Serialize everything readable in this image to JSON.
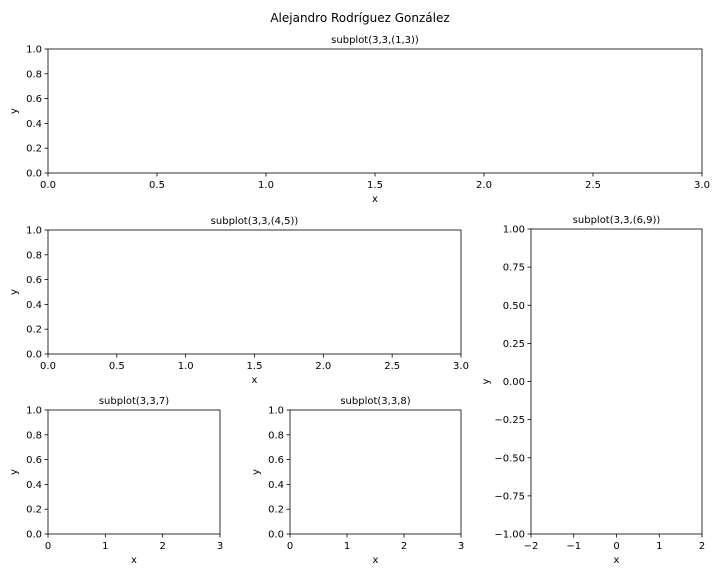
{
  "figure": {
    "suptitle": "Alejandro Rodríguez González"
  },
  "chart_data": [
    {
      "type": "line",
      "title": "subplot(3,3,(1,3))",
      "xlabel": "x",
      "ylabel": "y",
      "xlim": [
        0,
        3
      ],
      "ylim": [
        0,
        1
      ],
      "xticks": [
        "0.0",
        "0.5",
        "1.0",
        "1.5",
        "2.0",
        "2.5",
        "3.0"
      ],
      "yticks": [
        "0.0",
        "0.2",
        "0.4",
        "0.6",
        "0.8",
        "1.0"
      ],
      "series": []
    },
    {
      "type": "line",
      "title": "subplot(3,3,(4,5))",
      "xlabel": "x",
      "ylabel": "y",
      "xlim": [
        0,
        3
      ],
      "ylim": [
        0,
        1
      ],
      "xticks": [
        "0.0",
        "0.5",
        "1.0",
        "1.5",
        "2.0",
        "2.5",
        "3.0"
      ],
      "yticks": [
        "0.0",
        "0.2",
        "0.4",
        "0.6",
        "0.8",
        "1.0"
      ],
      "series": []
    },
    {
      "type": "line",
      "title": "subplot(3,3,(6,9))",
      "xlabel": "x",
      "ylabel": "y",
      "xlim": [
        -2,
        2
      ],
      "ylim": [
        -1,
        1
      ],
      "xticks": [
        "−2",
        "−1",
        "0",
        "1",
        "2"
      ],
      "yticks": [
        "−1.00",
        "−0.75",
        "−0.50",
        "−0.25",
        "0.00",
        "0.25",
        "0.50",
        "0.75",
        "1.00"
      ],
      "series": []
    },
    {
      "type": "line",
      "title": "subplot(3,3,7)",
      "xlabel": "x",
      "ylabel": "y",
      "xlim": [
        0,
        3
      ],
      "ylim": [
        0,
        1
      ],
      "xticks": [
        "0",
        "1",
        "2",
        "3"
      ],
      "yticks": [
        "0.0",
        "0.2",
        "0.4",
        "0.6",
        "0.8",
        "1.0"
      ],
      "series": []
    },
    {
      "type": "line",
      "title": "subplot(3,3,8)",
      "xlabel": "x",
      "ylabel": "y",
      "xlim": [
        0,
        3
      ],
      "ylim": [
        0,
        1
      ],
      "xticks": [
        "0",
        "1",
        "2",
        "3"
      ],
      "yticks": [
        "0.0",
        "0.2",
        "0.4",
        "0.6",
        "0.8",
        "1.0"
      ],
      "series": []
    }
  ]
}
